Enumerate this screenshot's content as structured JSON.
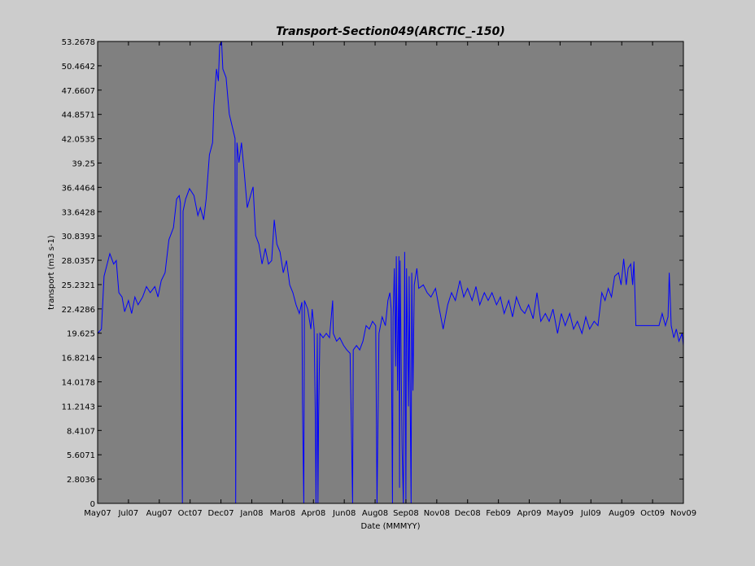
{
  "chart_data": {
    "type": "line",
    "title": "Transport-Section049(ARCTIC_-150)",
    "x_label": "Date (MMMYY)",
    "y_label": "transport (m3 s-1)",
    "color": "#0000ff",
    "xlim": [
      0,
      912
    ],
    "xticks": [
      {
        "value": 0,
        "label": "May07"
      },
      {
        "value": 48,
        "label": "Jul07"
      },
      {
        "value": 96,
        "label": "Aug07"
      },
      {
        "value": 144,
        "label": "Oct07"
      },
      {
        "value": 192,
        "label": "Dec07"
      },
      {
        "value": 240,
        "label": "Jan08"
      },
      {
        "value": 288,
        "label": "Mar08"
      },
      {
        "value": 336,
        "label": "Apr08"
      },
      {
        "value": 384,
        "label": "Jun08"
      },
      {
        "value": 432,
        "label": "Aug08"
      },
      {
        "value": 480,
        "label": "Sep08"
      },
      {
        "value": 528,
        "label": "Nov08"
      },
      {
        "value": 576,
        "label": "Dec08"
      },
      {
        "value": 624,
        "label": "Feb09"
      },
      {
        "value": 672,
        "label": "Apr09"
      },
      {
        "value": 720,
        "label": "May09"
      },
      {
        "value": 768,
        "label": "Jul09"
      },
      {
        "value": 816,
        "label": "Aug09"
      },
      {
        "value": 864,
        "label": "Oct09"
      },
      {
        "value": 912,
        "label": "Nov09"
      }
    ],
    "ylim": [
      0,
      53.2678
    ],
    "yticks": [
      0,
      2.8036,
      5.6071,
      8.4107,
      11.2143,
      14.0178,
      16.8214,
      19.625,
      22.4286,
      25.2321,
      28.0357,
      30.8393,
      33.6428,
      36.4464,
      39.25,
      42.0535,
      44.8571,
      47.6607,
      50.4642,
      53.2678
    ],
    "x": [
      0,
      6,
      10,
      19,
      25,
      29,
      33,
      38,
      42,
      48,
      53,
      58,
      63,
      70,
      76,
      82,
      89,
      94,
      99,
      105,
      111,
      118,
      123,
      127,
      129,
      130,
      132,
      133,
      137,
      143,
      150,
      156,
      160,
      165,
      169,
      174,
      179,
      181,
      185,
      188,
      190,
      193,
      195,
      200,
      205,
      211,
      214,
      215,
      217,
      220,
      224,
      228,
      233,
      238,
      242,
      246,
      251,
      256,
      261,
      266,
      271,
      275,
      279,
      284,
      289,
      294,
      299,
      304,
      309,
      314,
      318,
      319,
      321,
      322,
      327,
      332,
      334,
      337,
      339,
      340,
      342,
      343,
      344,
      346,
      351,
      356,
      361,
      366,
      367,
      372,
      377,
      383,
      388,
      393,
      395,
      397,
      398,
      403,
      408,
      413,
      418,
      423,
      428,
      433,
      434,
      435,
      438,
      443,
      448,
      452,
      455,
      457,
      459,
      460,
      462,
      464,
      465,
      467,
      469,
      470,
      471,
      474,
      476,
      478,
      480,
      481,
      484,
      485,
      488,
      489,
      491,
      493,
      497,
      500,
      507,
      513,
      519,
      526,
      532,
      538,
      545,
      551,
      557,
      564,
      570,
      576,
      583,
      589,
      595,
      602,
      608,
      614,
      621,
      627,
      633,
      640,
      646,
      652,
      659,
      665,
      671,
      678,
      684,
      690,
      697,
      703,
      709,
      716,
      722,
      728,
      735,
      741,
      747,
      754,
      760,
      766,
      773,
      779,
      785,
      790,
      795,
      800,
      805,
      811,
      815,
      819,
      823,
      826,
      830,
      833,
      835,
      838,
      874,
      879,
      884,
      888,
      890,
      893,
      897,
      901,
      905,
      910,
      912
    ],
    "values": [
      19.6,
      20.1,
      26.2,
      28.8,
      27.6,
      28.0,
      24.3,
      23.8,
      22.1,
      23.4,
      21.9,
      23.8,
      22.9,
      23.8,
      25.0,
      24.3,
      25.0,
      23.8,
      25.7,
      26.6,
      30.4,
      31.8,
      35.1,
      35.5,
      34.6,
      17.3,
      0,
      33.7,
      35.1,
      36.3,
      35.5,
      33.2,
      34.1,
      32.7,
      35.1,
      40.2,
      41.6,
      45.9,
      50.1,
      48.7,
      52.9,
      53.2,
      50.1,
      49.1,
      44.9,
      43.0,
      42.1,
      0,
      41.6,
      39.3,
      41.6,
      38.4,
      34.1,
      35.5,
      36.5,
      30.9,
      29.9,
      27.6,
      29.4,
      27.6,
      28.0,
      32.7,
      29.9,
      29.0,
      26.6,
      28.0,
      25.2,
      24.3,
      22.9,
      21.9,
      23.2,
      11.6,
      0,
      23.4,
      22.4,
      20.1,
      22.4,
      20.1,
      9.8,
      0,
      19.6,
      0,
      9.8,
      19.6,
      19.1,
      19.6,
      19.1,
      23.4,
      19.6,
      18.7,
      19.1,
      18.2,
      17.7,
      17.3,
      9.3,
      0,
      17.7,
      18.2,
      17.7,
      18.7,
      20.5,
      20.1,
      21.0,
      20.5,
      10.2,
      0,
      19.6,
      21.5,
      20.5,
      23.4,
      24.3,
      22.4,
      0,
      21.5,
      27.1,
      15.8,
      28.5,
      13.0,
      28.5,
      1.8,
      28.0,
      6.5,
      0,
      29.0,
      0,
      27.1,
      11.2,
      26.2,
      0,
      26.6,
      13.0,
      25.2,
      27.1,
      24.8,
      25.2,
      24.3,
      23.8,
      24.8,
      22.4,
      20.1,
      22.9,
      24.3,
      23.4,
      25.7,
      23.8,
      24.8,
      23.4,
      25.0,
      22.9,
      24.3,
      23.4,
      24.3,
      22.9,
      23.8,
      21.9,
      23.4,
      21.5,
      23.8,
      22.4,
      21.9,
      22.9,
      21.3,
      24.3,
      21.0,
      21.9,
      21.0,
      22.4,
      19.6,
      21.9,
      20.5,
      21.9,
      20.1,
      21.0,
      19.6,
      21.5,
      20.1,
      21.0,
      20.5,
      24.3,
      23.4,
      24.8,
      23.8,
      26.2,
      26.6,
      25.2,
      28.2,
      25.2,
      27.1,
      27.6,
      25.2,
      27.9,
      20.5,
      20.5,
      21.9,
      20.5,
      21.5,
      26.6,
      20.5,
      19.1,
      20.1,
      18.7,
      19.6,
      18.2
    ]
  }
}
